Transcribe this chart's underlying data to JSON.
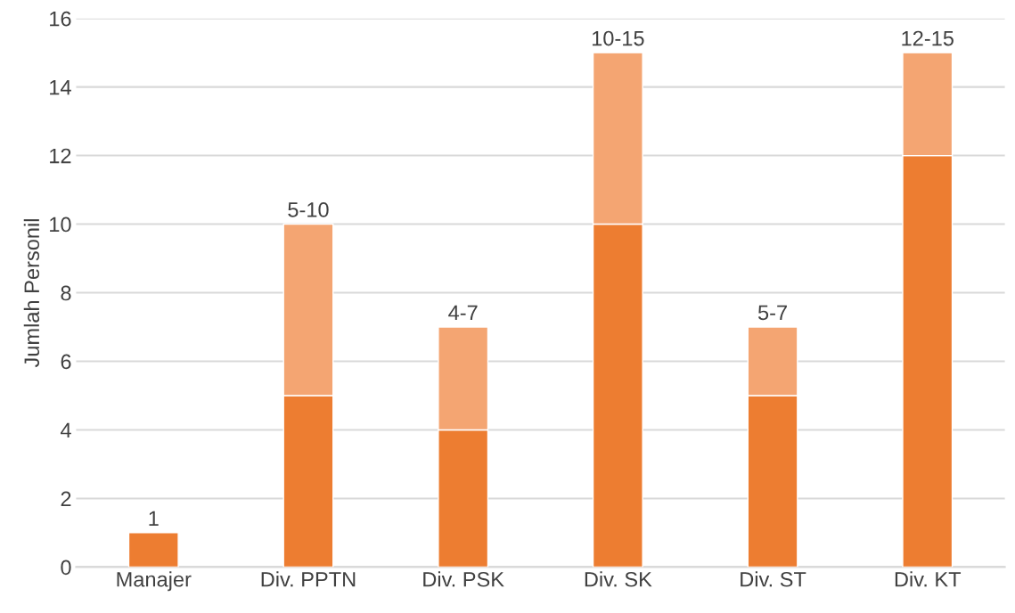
{
  "chart_data": {
    "type": "bar",
    "stacked": true,
    "ylabel": "Jumlah Personil",
    "categories": [
      "Manajer",
      "Div. PPTN",
      "Div. PSK",
      "Div. SK",
      "Div. ST",
      "Div. KT"
    ],
    "series": [
      {
        "color": "#ed7d31",
        "values": [
          1,
          5,
          4,
          10,
          5,
          12
        ]
      },
      {
        "color": "#f4a572",
        "values": [
          null,
          5,
          3,
          5,
          2,
          3
        ]
      }
    ],
    "totals": [
      "1",
      "5-10",
      "4-7",
      "10-15",
      "5-7",
      "12-15"
    ],
    "ylim": [
      0,
      16
    ],
    "yticks": [
      0,
      2,
      4,
      6,
      8,
      10,
      12,
      14,
      16
    ],
    "grid": "y",
    "legend": false
  }
}
